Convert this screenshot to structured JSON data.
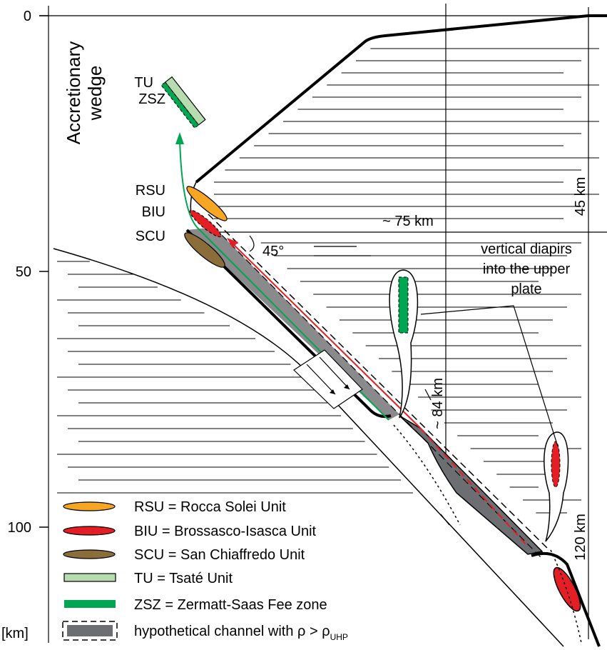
{
  "axis": {
    "ticks": [
      0,
      50,
      100
    ],
    "unit": "[km]"
  },
  "labels": {
    "wedge": [
      "Accretionary",
      "wedge"
    ],
    "tu": "TU",
    "zsz": "ZSZ",
    "rsu": "RSU",
    "biu": "BIU",
    "scu": "SCU",
    "angle": "45°",
    "width": "~ 75 km",
    "depth_45": "45 km",
    "depth_84": "~ 84 km",
    "depth_120": "120 km",
    "diapirs": [
      "vertical diapirs",
      "into the upper",
      "plate"
    ]
  },
  "legend": [
    {
      "text": "RSU = Rocca Solei Unit"
    },
    {
      "text": "BIU = Brossasco-Isasca Unit"
    },
    {
      "text": "SCU = San Chiaffredo Unit"
    },
    {
      "text": "TU = Tsaté Unit"
    },
    {
      "text": "ZSZ = Zermatt-Saas Fee zone"
    },
    {
      "text": "hypothetical channel with ρ > ρ",
      "subscript": "UHP"
    }
  ]
}
